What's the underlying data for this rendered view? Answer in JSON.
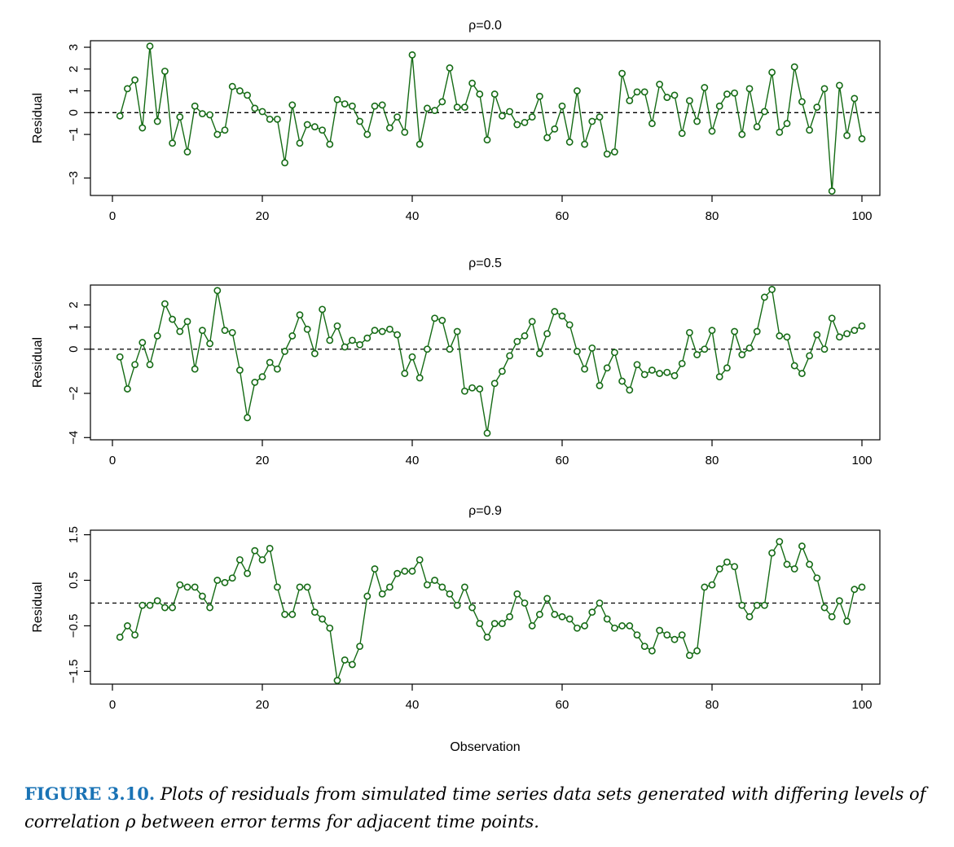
{
  "chart_data": [
    {
      "type": "scatter",
      "title": "ρ=0.0",
      "ylabel": "Residual",
      "xlabel": "",
      "xlim": [
        1,
        100
      ],
      "ylim": [
        -3.8,
        3.3
      ],
      "x_ticks": [
        0,
        20,
        40,
        60,
        80,
        100
      ],
      "y_ticks": [
        3,
        2,
        1,
        0,
        -1,
        -3
      ],
      "y_tick_labels": [
        "3",
        "2",
        "1",
        "0",
        "−1",
        "−3"
      ],
      "reference_line": 0,
      "grid": false,
      "series": [
        {
          "values": [
            -0.15,
            1.1,
            1.5,
            -0.7,
            3.05,
            -0.4,
            1.9,
            -1.4,
            -0.2,
            -1.8,
            0.3,
            -0.05,
            -0.1,
            -1.0,
            -0.8,
            1.2,
            1.0,
            0.8,
            0.2,
            0.05,
            -0.3,
            -0.3,
            -2.3,
            0.35,
            -1.4,
            -0.55,
            -0.65,
            -0.8,
            -1.45,
            0.6,
            0.4,
            0.3,
            -0.4,
            -1.0,
            0.3,
            0.35,
            -0.7,
            -0.2,
            -0.9,
            2.65,
            -1.45,
            0.2,
            0.1,
            0.5,
            2.05,
            0.25,
            0.25,
            1.35,
            0.85,
            -1.25,
            0.85,
            -0.15,
            0.05,
            -0.55,
            -0.45,
            -0.2,
            0.75,
            -1.15,
            -0.75,
            0.3,
            -1.35,
            1.0,
            -1.45,
            -0.4,
            -0.2,
            -1.9,
            -1.8,
            1.8,
            0.55,
            0.95,
            0.95,
            -0.5,
            1.3,
            0.7,
            0.8,
            -0.95,
            0.55,
            -0.4,
            1.15,
            -0.85,
            0.3,
            0.85,
            0.9,
            -1.0,
            1.1,
            -0.65,
            0.05,
            1.85,
            -0.9,
            -0.5,
            2.1,
            0.5,
            -0.8,
            0.25,
            1.1,
            -3.6,
            1.25,
            -1.05,
            0.65,
            -1.2
          ]
        }
      ]
    },
    {
      "type": "scatter",
      "title": "ρ=0.5",
      "ylabel": "Residual",
      "xlabel": "",
      "xlim": [
        1,
        100
      ],
      "ylim": [
        -4.1,
        2.9
      ],
      "x_ticks": [
        0,
        20,
        40,
        60,
        80,
        100
      ],
      "y_ticks": [
        2,
        1,
        0,
        -2,
        -4
      ],
      "y_tick_labels": [
        "2",
        "1",
        "0",
        "−2",
        "−4"
      ],
      "reference_line": 0,
      "grid": false,
      "series": [
        {
          "values": [
            -0.35,
            -1.8,
            -0.7,
            0.3,
            -0.7,
            0.6,
            2.05,
            1.35,
            0.8,
            1.25,
            -0.9,
            0.85,
            0.25,
            2.65,
            0.85,
            0.75,
            -0.95,
            -3.1,
            -1.5,
            -1.25,
            -0.6,
            -0.9,
            -0.1,
            0.6,
            1.55,
            0.9,
            -0.2,
            1.8,
            0.4,
            1.05,
            0.1,
            0.4,
            0.2,
            0.5,
            0.85,
            0.8,
            0.9,
            0.65,
            -1.1,
            -0.35,
            -1.3,
            0.0,
            1.4,
            1.3,
            0.0,
            0.8,
            -1.9,
            -1.75,
            -1.8,
            -3.8,
            -1.55,
            -1.0,
            -0.3,
            0.35,
            0.6,
            1.25,
            -0.2,
            0.7,
            1.7,
            1.5,
            1.1,
            -0.1,
            -0.9,
            0.05,
            -1.65,
            -0.85,
            -0.15,
            -1.45,
            -1.85,
            -0.7,
            -1.15,
            -0.95,
            -1.1,
            -1.05,
            -1.2,
            -0.65,
            0.75,
            -0.25,
            0.0,
            0.85,
            -1.25,
            -0.85,
            0.8,
            -0.25,
            0.05,
            0.8,
            2.35,
            2.7,
            0.6,
            0.55,
            -0.75,
            -1.1,
            -0.3,
            0.65,
            0.0,
            1.4,
            0.55,
            0.7,
            0.85,
            1.05
          ]
        }
      ]
    },
    {
      "type": "scatter",
      "title": "ρ=0.9",
      "ylabel": "Residual",
      "xlabel": "Observation",
      "xlim": [
        1,
        100
      ],
      "ylim": [
        -1.78,
        1.6
      ],
      "x_ticks": [
        0,
        20,
        40,
        60,
        80,
        100
      ],
      "y_ticks": [
        1.5,
        0.5,
        -0.5,
        -1.5
      ],
      "y_tick_labels": [
        "1.5",
        "0.5",
        "−0.5",
        "−1.5"
      ],
      "reference_line": 0,
      "grid": false,
      "series": [
        {
          "values": [
            -0.75,
            -0.5,
            -0.7,
            -0.05,
            -0.05,
            0.05,
            -0.1,
            -0.1,
            0.4,
            0.35,
            0.35,
            0.15,
            -0.1,
            0.5,
            0.45,
            0.55,
            0.95,
            0.65,
            1.15,
            0.95,
            1.2,
            0.35,
            -0.25,
            -0.25,
            0.35,
            0.35,
            -0.2,
            -0.35,
            -0.55,
            -1.7,
            -1.25,
            -1.35,
            -0.95,
            0.15,
            0.75,
            0.2,
            0.35,
            0.65,
            0.7,
            0.7,
            0.95,
            0.4,
            0.5,
            0.35,
            0.2,
            -0.05,
            0.35,
            -0.1,
            -0.45,
            -0.75,
            -0.45,
            -0.45,
            -0.3,
            0.2,
            0.0,
            -0.5,
            -0.25,
            0.1,
            -0.25,
            -0.3,
            -0.35,
            -0.55,
            -0.5,
            -0.2,
            0.0,
            -0.35,
            -0.55,
            -0.5,
            -0.5,
            -0.7,
            -0.95,
            -1.05,
            -0.6,
            -0.7,
            -0.8,
            -0.7,
            -1.15,
            -1.05,
            0.35,
            0.4,
            0.75,
            0.9,
            0.8,
            -0.05,
            -0.3,
            -0.05,
            -0.05,
            1.1,
            1.35,
            0.85,
            0.75,
            1.25,
            0.85,
            0.55,
            -0.1,
            -0.3,
            0.05,
            -0.4,
            0.3,
            0.35
          ]
        }
      ]
    }
  ],
  "series_color": "#156b15",
  "caption": {
    "label": "FIGURE 3.10.",
    "text": "Plots of residuals from simulated time series data sets generated with differing levels of correlation ρ between error terms for adjacent time points.",
    "label_color": "#1a73b5"
  }
}
